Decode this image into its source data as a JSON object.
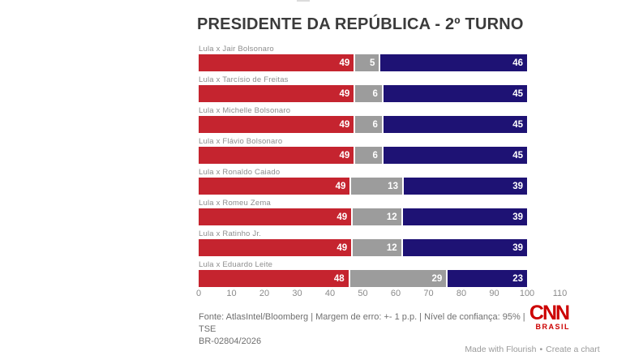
{
  "title": "PRESIDENTE DA REPÚBLICA - 2º TURNO",
  "chart_data": {
    "type": "bar",
    "subtype": "stacked-horizontal",
    "title": "PRESIDENTE DA REPÚBLICA - 2º TURNO",
    "rows": [
      {
        "label": "Lula x Jair Bolsonaro",
        "values": [
          49,
          5,
          46
        ]
      },
      {
        "label": "Lula x Tarcísio de Freitas",
        "values": [
          49,
          6,
          45
        ]
      },
      {
        "label": "Lula x Michelle Bolsonaro",
        "values": [
          49,
          6,
          45
        ]
      },
      {
        "label": "Lula x Flávio Bolsonaro",
        "values": [
          49,
          6,
          45
        ]
      },
      {
        "label": "Lula x Ronaldo Caiado",
        "values": [
          49,
          13,
          39
        ]
      },
      {
        "label": "Lula x Romeu Zema",
        "values": [
          49,
          12,
          39
        ]
      },
      {
        "label": "Lula x Ratinho Jr.",
        "values": [
          49,
          12,
          39
        ]
      },
      {
        "label": "Lula x Eduardo Leite",
        "values": [
          48,
          29,
          23
        ]
      }
    ],
    "segment_colors": [
      "#c5242f",
      "#9c9c9c",
      "#1e1274"
    ],
    "segment_names": [
      "lula-red-segment",
      "neutral-gray-segment",
      "opponent-navy-segment"
    ],
    "x_ticks": [
      "0",
      "10",
      "20",
      "30",
      "40",
      "50",
      "60",
      "70",
      "80",
      "90",
      "100",
      "110"
    ],
    "xlim": [
      0,
      110
    ],
    "grid": false,
    "legend": "none"
  },
  "footer": {
    "line1": "Fonte: AtlasIntel/Bloomberg | Margem de erro: +- 1 p.p. | Nível de confiança: 95% | TSE",
    "line2": "BR-02804/2026"
  },
  "branding": {
    "cnn": "CNN",
    "brasil": "BRASIL"
  },
  "attribution": {
    "made_with": "Made with Flourish",
    "separator": "•",
    "create": "Create a chart"
  }
}
